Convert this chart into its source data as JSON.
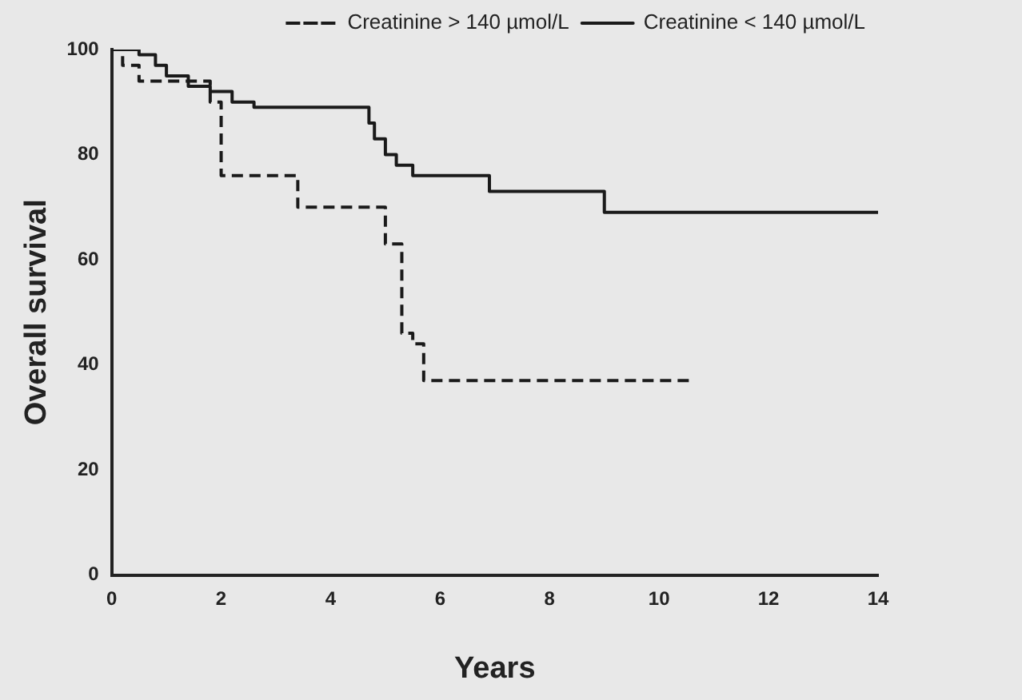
{
  "chart_data": {
    "type": "step",
    "xlabel": "Years",
    "ylabel": "Overall survival",
    "series": [
      {
        "name": "Creatinine > 140 µmol/L",
        "color": "#1a1a1a",
        "line_style": "dashed",
        "x": [
          0,
          0.2,
          0.5,
          1.8,
          2.0,
          3.4,
          5.0,
          5.3,
          5.5,
          5.7,
          10.6
        ],
        "values": [
          100,
          97,
          94,
          90,
          76,
          70,
          63,
          46,
          44,
          37,
          37
        ]
      },
      {
        "name": "Creatinine < 140 µmol/L",
        "color": "#1a1a1a",
        "line_style": "solid",
        "x": [
          0,
          0.5,
          0.8,
          1.0,
          1.4,
          1.8,
          2.2,
          2.6,
          4.6,
          4.7,
          4.8,
          5.0,
          5.2,
          5.5,
          6.9,
          9.0,
          14
        ],
        "values": [
          100,
          99,
          97,
          95,
          93,
          92,
          90,
          89,
          89,
          86,
          83,
          80,
          78,
          76,
          73,
          69,
          69
        ]
      }
    ],
    "xlim": [
      0,
      14
    ],
    "xticks": [
      0,
      2,
      4,
      6,
      8,
      10,
      12,
      14
    ],
    "ylim": [
      0,
      100
    ],
    "yticks": [
      0,
      20,
      40,
      60,
      80,
      100
    ],
    "grid": false,
    "legend": "top right",
    "marker": "none"
  }
}
